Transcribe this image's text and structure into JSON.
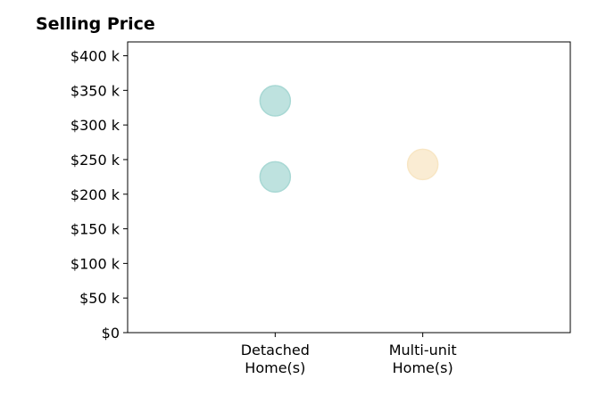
{
  "chart_data": {
    "type": "scatter",
    "title": "Selling Price",
    "xlabel": "",
    "ylabel": "",
    "categories": [
      {
        "line1": "Detached",
        "line2": "Home(s)"
      },
      {
        "line1": "Multi-unit",
        "line2": "Home(s)"
      }
    ],
    "xlim": [
      0,
      3
    ],
    "ylim": [
      0,
      420000
    ],
    "yticks": [
      {
        "value": 0,
        "label": "$0"
      },
      {
        "value": 50000,
        "label": "$50 k"
      },
      {
        "value": 100000,
        "label": "$100 k"
      },
      {
        "value": 150000,
        "label": "$150 k"
      },
      {
        "value": 200000,
        "label": "$200 k"
      },
      {
        "value": 250000,
        "label": "$250 k"
      },
      {
        "value": 300000,
        "label": "$300 k"
      },
      {
        "value": 350000,
        "label": "$350 k"
      },
      {
        "value": 400000,
        "label": "$400 k"
      }
    ],
    "points": [
      {
        "category": 0,
        "y": 335000,
        "color": "#a8d8d4"
      },
      {
        "category": 0,
        "y": 225000,
        "color": "#a8d8d4"
      },
      {
        "category": 1,
        "y": 243000,
        "color": "#f8e6c4"
      }
    ],
    "grid": false,
    "legend": "none"
  }
}
